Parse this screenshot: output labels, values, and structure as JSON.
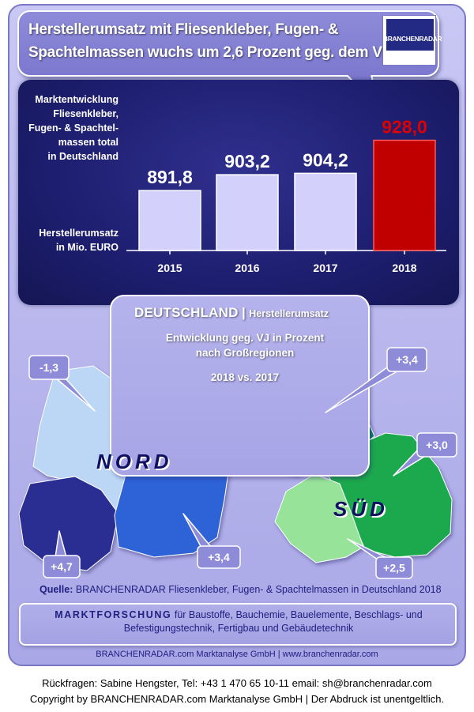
{
  "headline": {
    "line1": "Herstellerumsatz mit Fliesenkleber, Fugen- &",
    "line2": "Spachtelmassen wuchs um 2,6 Prozent geg. dem VJ"
  },
  "logo": {
    "text": "BRANCHENRADAR"
  },
  "chart_labels": {
    "market_line1": "Marktentwicklung",
    "market_line2": "Fliesenkleber,",
    "market_line3": "Fugen- & Spachtel-",
    "market_line4": "massen total",
    "market_line5": "in Deutschland",
    "unit_line1": "Herstellerumsatz",
    "unit_line2": "in Mio. EURO"
  },
  "chart_data": {
    "type": "bar",
    "categories": [
      "2015",
      "2016",
      "2017",
      "2018"
    ],
    "values": [
      891.8,
      903.2,
      904.2,
      928.0
    ],
    "value_labels": [
      "891,8",
      "903,2",
      "904,2",
      "928,0"
    ],
    "highlight_index": 3,
    "colors": {
      "bar": "#d3d1fb",
      "highlight": "#c00000",
      "value_text": "#ffffff",
      "highlight_text": "#e00000",
      "axis": "#ffffff"
    },
    "title": "",
    "xlabel": "",
    "ylabel": "Herstellerumsatz in Mio. EURO"
  },
  "region_box": {
    "title_big": "DEUTSCHLAND",
    "title_sep": "|",
    "title_small": "Herstellerumsatz",
    "sub1": "Entwicklung  geg. VJ in Prozent",
    "sub2": "nach Großregionen",
    "sub3": "2018 vs. 2017"
  },
  "map": {
    "nord_label": "NORD",
    "sued_label": "SÜD",
    "callouts": [
      "-1,3",
      "+4,7",
      "+3,4",
      "+3,4",
      "+3,0",
      "+2,5"
    ],
    "colors": {
      "nw": "#bcd7f5",
      "west": "#2a2e93",
      "east": "#2f63d8",
      "sued_north": "#0e7a6f",
      "bayern": "#1aa84d",
      "bw": "#97e39a"
    }
  },
  "source": {
    "label": "Quelle:",
    "text": " BRANCHENRADAR Fliesenkleber, Fugen- & Spachtelmassen in Deutschland 2018"
  },
  "info": {
    "strong": "MARKTFORSCHUNG",
    "line1_rest": " für Baustoffe, Bauchemie, Bauelemente, Beschlags- und",
    "line2": "Befestigungstechnik, Fertigbau und Gebäudetechnik"
  },
  "company_line": "BRANCHENRADAR.com Marktanalyse GmbH | www.branchenradar.com",
  "footer": {
    "line1": "Rückfragen: Sabine Hengster, Tel: +43 1 470 65 10-11 email: sh@branchenradar.com",
    "line2": "Copyright by BRANCHENRADAR.com  Marktanalyse GmbH | Der Abdruck ist unentgeltlich."
  }
}
